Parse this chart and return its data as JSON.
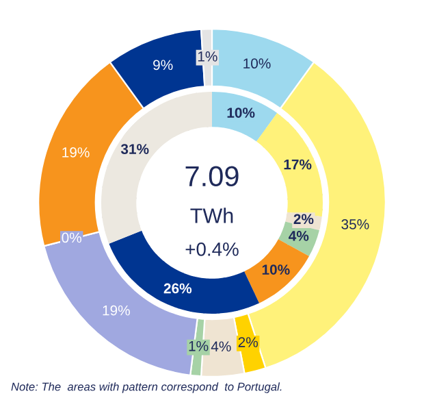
{
  "chart_data": {
    "type": "donut",
    "series": [
      {
        "values": [
          10,
          35,
          2,
          4,
          1,
          19,
          0,
          19,
          9,
          1
        ],
        "value_labels": [
          "10%",
          "35%",
          "2%",
          "4%",
          "1%",
          "19%",
          "0%",
          "19%",
          "9%",
          "1%"
        ],
        "colors": [
          "#9dd9ee",
          "#fff27a",
          "#ffd200",
          "#efe4d2",
          "#a6d2a6",
          "#a0a8e0",
          "#a0a8e0",
          "#f7941d",
          "#003591",
          "#e4e4e4"
        ]
      },
      {
        "values": [
          10,
          17,
          2,
          4,
          10,
          26,
          31
        ],
        "value_labels": [
          "10%",
          "17%",
          "2%",
          "4%",
          "10%",
          "26%",
          "31%"
        ],
        "colors": [
          "#9dd9ee",
          "#fff27a",
          "#efe4d2",
          "#a6d2a6",
          "#f7941d",
          "#003591",
          "#ece8e0"
        ]
      }
    ],
    "annotations": [
      "7.09",
      "TWh",
      "+0.4%",
      "Note: The  areas with pattern correspond  to Portugal."
    ]
  }
}
